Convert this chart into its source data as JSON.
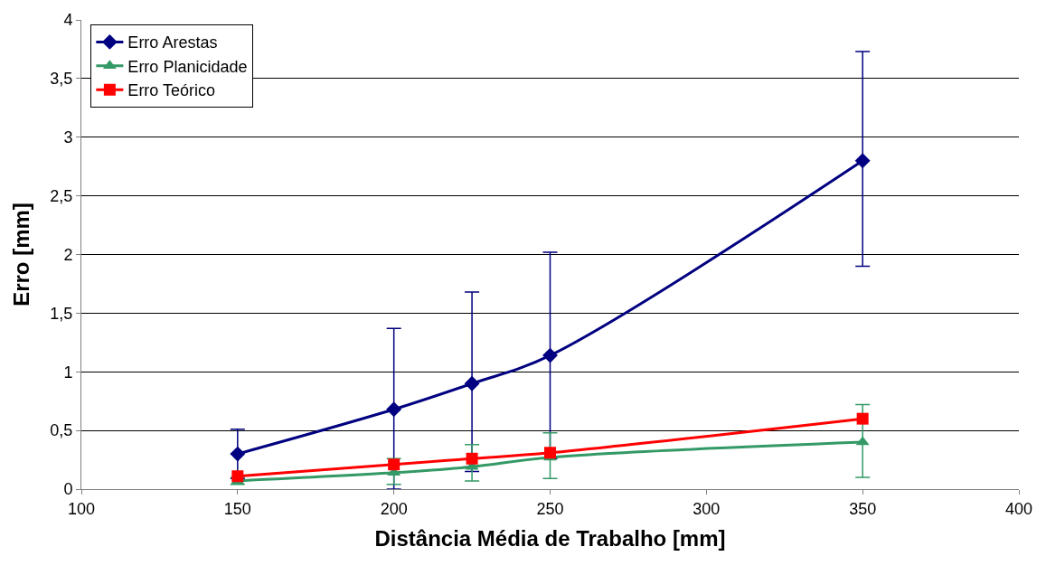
{
  "chart_data": {
    "type": "line",
    "xlabel": "Distância Média de Trabalho [mm]",
    "ylabel": "Erro [mm]",
    "x": [
      150,
      200,
      225,
      250,
      350
    ],
    "series": [
      {
        "name": "Erro Arestas",
        "color": "#000080",
        "marker": "diamond",
        "values": [
          0.3,
          0.68,
          0.9,
          1.14,
          2.8
        ],
        "errors": [
          0.21,
          [
            0,
            1.37
          ],
          [
            0.15,
            1.68
          ],
          [
            0.26,
            2.02
          ],
          [
            1.9,
            3.73
          ]
        ]
      },
      {
        "name": "Erro Planicidade",
        "color": "#339966",
        "marker": "triangle",
        "values": [
          0.07,
          0.14,
          0.19,
          0.27,
          0.4
        ],
        "errors": [
          0.03,
          [
            0.04,
            0.26
          ],
          [
            0.07,
            0.38
          ],
          [
            0.09,
            0.48
          ],
          [
            0.1,
            0.72
          ]
        ]
      },
      {
        "name": "Erro Teórico",
        "color": "#ff0000",
        "marker": "square",
        "values": [
          0.11,
          0.21,
          0.26,
          0.31,
          0.6
        ]
      }
    ],
    "xlim": [
      100,
      400
    ],
    "xticks": [
      100,
      150,
      200,
      250,
      300,
      350,
      400
    ],
    "ylim": [
      0,
      4
    ],
    "yticks": [
      0,
      {
        "value": 0.5,
        "label": "0,5"
      },
      1,
      {
        "value": 1.5,
        "label": "1,5"
      },
      2,
      {
        "value": 2.5,
        "label": "2,5"
      },
      3,
      {
        "value": 3.5,
        "label": "3,5"
      },
      4
    ],
    "grid": "y",
    "legend": "top left",
    "line_style": "solid"
  }
}
